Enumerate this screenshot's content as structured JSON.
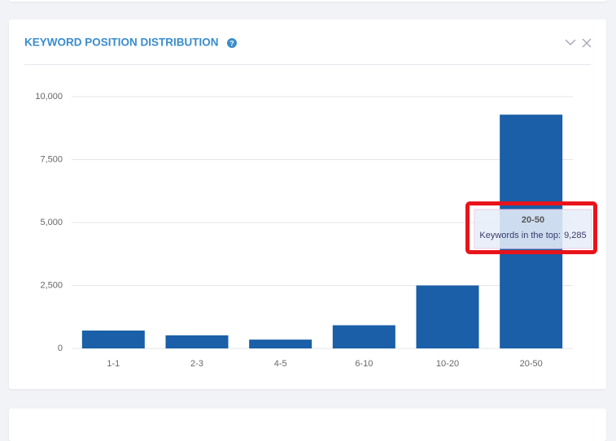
{
  "chart_data": {
    "type": "bar",
    "title": "KEYWORD POSITION DISTRIBUTION",
    "categories": [
      "1-1",
      "2-3",
      "4-5",
      "6-10",
      "10-20",
      "20-50"
    ],
    "values": [
      710,
      520,
      350,
      920,
      2500,
      9285
    ],
    "value_labels": [
      null,
      null,
      null,
      null,
      null,
      "9,285"
    ],
    "color": "#1a5fa7",
    "ylim": [
      0,
      10000
    ],
    "yticks": [
      0,
      {
        "value": 2500,
        "label": "2,500"
      },
      {
        "value": 5000,
        "label": "5,000"
      },
      {
        "value": 7500,
        "label": "7,500"
      },
      {
        "value": 10000,
        "label": "10,000"
      }
    ],
    "grid": true,
    "tooltip": {
      "title": "20-50",
      "label": "Keywords in the top:"
    }
  }
}
